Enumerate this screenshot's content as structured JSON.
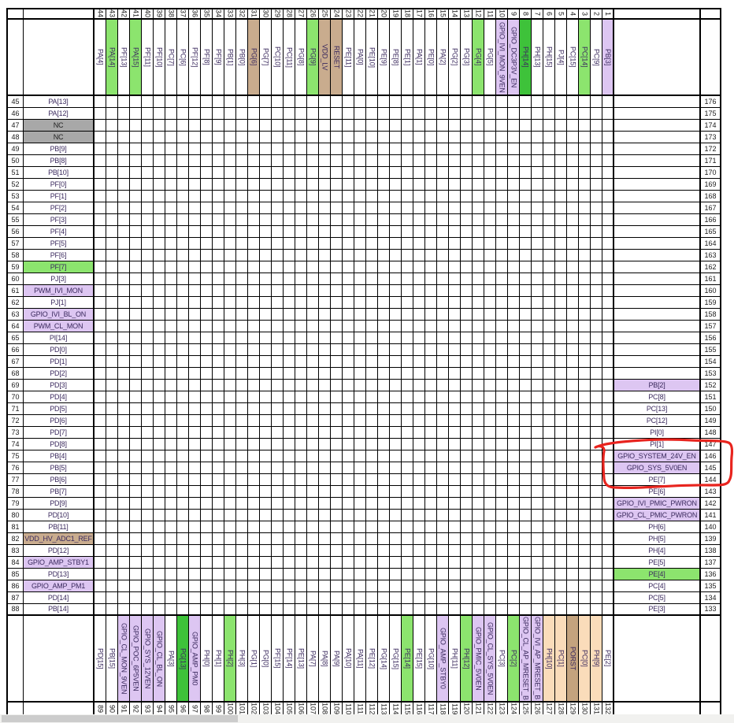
{
  "colors": {
    "light_green": "#8CE46E",
    "dark_green": "#3EC23A",
    "light_purple": "#DDC6F2",
    "tan": "#C9AC8E",
    "dark_tan": "#C4A37E",
    "peach": "#FADCBA",
    "gray_nc": "#A8A8A8",
    "annotation_red": "#E8241E",
    "label_text": "#3B2A5E",
    "number_text": "#1A1A1A"
  },
  "color_legend": {
    "w": "white",
    "g": "light_green",
    "G": "dark_green",
    "p": "light_purple",
    "t": "tan",
    "T": "dark_tan",
    "o": "peach",
    "n": "gray_nc"
  },
  "pins": {
    "top": [
      {
        "n": "44",
        "l": "PA[4]",
        "c": "w"
      },
      {
        "n": "43",
        "l": "PA[14]",
        "c": "g"
      },
      {
        "n": "42",
        "l": "PF[13]",
        "c": "w"
      },
      {
        "n": "41",
        "l": "PA[15]",
        "c": "g"
      },
      {
        "n": "40",
        "l": "PF[11]",
        "c": "w"
      },
      {
        "n": "39",
        "l": "PF[10]",
        "c": "w"
      },
      {
        "n": "38",
        "l": "PC[7]",
        "c": "w"
      },
      {
        "n": "37",
        "l": "PC[6]",
        "c": "w"
      },
      {
        "n": "36",
        "l": "PF[12]",
        "c": "w"
      },
      {
        "n": "35",
        "l": "PF[8]",
        "c": "w"
      },
      {
        "n": "34",
        "l": "PF[9]",
        "c": "w"
      },
      {
        "n": "33",
        "l": "PB[1]",
        "c": "w"
      },
      {
        "n": "32",
        "l": "PB[0]",
        "c": "w"
      },
      {
        "n": "31",
        "l": "PG[6]",
        "c": "t"
      },
      {
        "n": "30",
        "l": "PG[7]",
        "c": "w"
      },
      {
        "n": "29",
        "l": "PC[10]",
        "c": "w"
      },
      {
        "n": "28",
        "l": "PC[11]",
        "c": "w"
      },
      {
        "n": "27",
        "l": "PG[8]",
        "c": "w"
      },
      {
        "n": "26",
        "l": "PG[9]",
        "c": "g"
      },
      {
        "n": "25",
        "l": "VDD_LV",
        "c": "t"
      },
      {
        "n": "24",
        "l": "RESET",
        "c": "t"
      },
      {
        "n": "23",
        "l": "PE[11]",
        "c": "w"
      },
      {
        "n": "22",
        "l": "PA[0]",
        "c": "w"
      },
      {
        "n": "21",
        "l": "PE[10]",
        "c": "w"
      },
      {
        "n": "20",
        "l": "PE[9]",
        "c": "w"
      },
      {
        "n": "19",
        "l": "PE[8]",
        "c": "w"
      },
      {
        "n": "18",
        "l": "PE[1]",
        "c": "w"
      },
      {
        "n": "17",
        "l": "PA[1]",
        "c": "w"
      },
      {
        "n": "16",
        "l": "PE[0]",
        "c": "w"
      },
      {
        "n": "15",
        "l": "PA[2]",
        "c": "w"
      },
      {
        "n": "14",
        "l": "PG[2]",
        "c": "w"
      },
      {
        "n": "13",
        "l": "PG[3]",
        "c": "w"
      },
      {
        "n": "12",
        "l": "PG[4]",
        "c": "g"
      },
      {
        "n": "11",
        "l": "PG[5]",
        "c": "w"
      },
      {
        "n": "10",
        "l": "GPIO_IVI_MON_9VEN",
        "c": "p"
      },
      {
        "n": "9",
        "l": "GPIO_DC3P3V_EN",
        "c": "p"
      },
      {
        "n": "8",
        "l": "PH[14]",
        "c": "G"
      },
      {
        "n": "7",
        "l": "PH[13]",
        "c": "w"
      },
      {
        "n": "6",
        "l": "PH[15]",
        "c": "w"
      },
      {
        "n": "5",
        "l": "PJ[4]",
        "c": "w"
      },
      {
        "n": "4",
        "l": "PC[15]",
        "c": "w"
      },
      {
        "n": "3",
        "l": "PC[14]",
        "c": "g"
      },
      {
        "n": "2",
        "l": "PC[9]",
        "c": "w"
      },
      {
        "n": "1",
        "l": "PB[3]",
        "c": "p"
      }
    ],
    "left": [
      {
        "n": "45",
        "l": "PA[13]",
        "c": "w"
      },
      {
        "n": "46",
        "l": "PA[12]",
        "c": "w"
      },
      {
        "n": "47",
        "l": "NC",
        "c": "n"
      },
      {
        "n": "48",
        "l": "NC",
        "c": "n"
      },
      {
        "n": "49",
        "l": "PB[9]",
        "c": "w"
      },
      {
        "n": "50",
        "l": "PB[8]",
        "c": "w"
      },
      {
        "n": "51",
        "l": "PB[10]",
        "c": "w"
      },
      {
        "n": "52",
        "l": "PF[0]",
        "c": "w"
      },
      {
        "n": "53",
        "l": "PF[1]",
        "c": "w"
      },
      {
        "n": "54",
        "l": "PF[2]",
        "c": "w"
      },
      {
        "n": "55",
        "l": "PF[3]",
        "c": "w"
      },
      {
        "n": "56",
        "l": "PF[4]",
        "c": "w"
      },
      {
        "n": "57",
        "l": "PF[5]",
        "c": "w"
      },
      {
        "n": "58",
        "l": "PF[6]",
        "c": "w"
      },
      {
        "n": "59",
        "l": "PF[7]",
        "c": "g"
      },
      {
        "n": "60",
        "l": "PJ[3]",
        "c": "w"
      },
      {
        "n": "61",
        "l": "PWM_IVI_MON",
        "c": "p"
      },
      {
        "n": "62",
        "l": "PJ[1]",
        "c": "w"
      },
      {
        "n": "63",
        "l": "GPIO_IVI_BL_ON",
        "c": "p"
      },
      {
        "n": "64",
        "l": "PWM_CL_MON",
        "c": "p"
      },
      {
        "n": "65",
        "l": "PI[14]",
        "c": "w"
      },
      {
        "n": "66",
        "l": "PD[0]",
        "c": "w"
      },
      {
        "n": "67",
        "l": "PD[1]",
        "c": "w"
      },
      {
        "n": "68",
        "l": "PD[2]",
        "c": "w"
      },
      {
        "n": "69",
        "l": "PD[3]",
        "c": "w"
      },
      {
        "n": "70",
        "l": "PD[4]",
        "c": "w"
      },
      {
        "n": "71",
        "l": "PD[5]",
        "c": "w"
      },
      {
        "n": "72",
        "l": "PD[6]",
        "c": "w"
      },
      {
        "n": "73",
        "l": "PD[7]",
        "c": "w"
      },
      {
        "n": "74",
        "l": "PD[8]",
        "c": "w"
      },
      {
        "n": "75",
        "l": "PB[4]",
        "c": "w"
      },
      {
        "n": "76",
        "l": "PB[5]",
        "c": "w"
      },
      {
        "n": "77",
        "l": "PB[6]",
        "c": "w"
      },
      {
        "n": "78",
        "l": "PB[7]",
        "c": "w"
      },
      {
        "n": "79",
        "l": "PD[9]",
        "c": "w"
      },
      {
        "n": "80",
        "l": "PD[10]",
        "c": "w"
      },
      {
        "n": "81",
        "l": "PB[11]",
        "c": "w"
      },
      {
        "n": "82",
        "l": "VDD_HV_ADC1_REF",
        "c": "t"
      },
      {
        "n": "83",
        "l": "PD[12]",
        "c": "w"
      },
      {
        "n": "84",
        "l": "GPIO_AMP_STBY1",
        "c": "p"
      },
      {
        "n": "85",
        "l": "PD[13]",
        "c": "w"
      },
      {
        "n": "86",
        "l": "GPIO_AMP_PM1",
        "c": "p"
      },
      {
        "n": "87",
        "l": "PD[14]",
        "c": "w"
      },
      {
        "n": "88",
        "l": "PB[14]",
        "c": "w"
      }
    ],
    "right": [
      {
        "n": "176",
        "l": "",
        "c": "w"
      },
      {
        "n": "175",
        "l": "",
        "c": "w"
      },
      {
        "n": "174",
        "l": "",
        "c": "w"
      },
      {
        "n": "173",
        "l": "",
        "c": "w"
      },
      {
        "n": "172",
        "l": "",
        "c": "w"
      },
      {
        "n": "171",
        "l": "",
        "c": "w"
      },
      {
        "n": "170",
        "l": "",
        "c": "w"
      },
      {
        "n": "169",
        "l": "",
        "c": "w"
      },
      {
        "n": "168",
        "l": "",
        "c": "w"
      },
      {
        "n": "167",
        "l": "",
        "c": "w"
      },
      {
        "n": "166",
        "l": "",
        "c": "w"
      },
      {
        "n": "165",
        "l": "",
        "c": "w"
      },
      {
        "n": "164",
        "l": "",
        "c": "w"
      },
      {
        "n": "163",
        "l": "",
        "c": "w"
      },
      {
        "n": "162",
        "l": "",
        "c": "w"
      },
      {
        "n": "161",
        "l": "",
        "c": "w"
      },
      {
        "n": "160",
        "l": "",
        "c": "w"
      },
      {
        "n": "159",
        "l": "",
        "c": "w"
      },
      {
        "n": "158",
        "l": "",
        "c": "w"
      },
      {
        "n": "157",
        "l": "",
        "c": "w"
      },
      {
        "n": "156",
        "l": "",
        "c": "w"
      },
      {
        "n": "155",
        "l": "",
        "c": "w"
      },
      {
        "n": "154",
        "l": "",
        "c": "w"
      },
      {
        "n": "153",
        "l": "",
        "c": "w"
      },
      {
        "n": "152",
        "l": "PB[2]",
        "c": "p"
      },
      {
        "n": "151",
        "l": "PC[8]",
        "c": "w"
      },
      {
        "n": "150",
        "l": "PC[13]",
        "c": "w"
      },
      {
        "n": "149",
        "l": "PC[12]",
        "c": "w"
      },
      {
        "n": "148",
        "l": "PI[0]",
        "c": "w"
      },
      {
        "n": "147",
        "l": "PI[1]",
        "c": "w"
      },
      {
        "n": "146",
        "l": "GPIO_SYSTEM_24V_EN",
        "c": "p"
      },
      {
        "n": "145",
        "l": "GPIO_SYS_5V0EN",
        "c": "p"
      },
      {
        "n": "144",
        "l": "PE[7]",
        "c": "w"
      },
      {
        "n": "143",
        "l": "PE[6]",
        "c": "w"
      },
      {
        "n": "142",
        "l": "GPIO_IVI_PMIC_PWRON",
        "c": "p"
      },
      {
        "n": "141",
        "l": "GPIO_CL_PMIC_PWRON",
        "c": "p"
      },
      {
        "n": "140",
        "l": "PH[6]",
        "c": "w"
      },
      {
        "n": "139",
        "l": "PH[5]",
        "c": "w"
      },
      {
        "n": "138",
        "l": "PH[4]",
        "c": "w"
      },
      {
        "n": "137",
        "l": "PE[5]",
        "c": "w"
      },
      {
        "n": "136",
        "l": "PE[4]",
        "c": "g"
      },
      {
        "n": "135",
        "l": "PC[4]",
        "c": "w"
      },
      {
        "n": "134",
        "l": "PC[5]",
        "c": "w"
      },
      {
        "n": "133",
        "l": "PE[3]",
        "c": "w"
      }
    ],
    "bottom": [
      {
        "n": "89",
        "l": "PD[15]",
        "c": "w"
      },
      {
        "n": "90",
        "l": "PB[15]",
        "c": "w"
      },
      {
        "n": "91",
        "l": "GPIO_CL_MON_9VEN",
        "c": "p"
      },
      {
        "n": "92",
        "l": "GPIO_POC_6P5VEN",
        "c": "p"
      },
      {
        "n": "93",
        "l": "GPIO_SYS_12VEN",
        "c": "p"
      },
      {
        "n": "94",
        "l": "GPIO_CL_BL_ON",
        "c": "p"
      },
      {
        "n": "95",
        "l": "PA[3]",
        "c": "w"
      },
      {
        "n": "96",
        "l": "PG[13]",
        "c": "G"
      },
      {
        "n": "97",
        "l": "GPIO_AMP_PM0",
        "c": "p"
      },
      {
        "n": "98",
        "l": "PH[0]",
        "c": "w"
      },
      {
        "n": "99",
        "l": "PH[1]",
        "c": "w"
      },
      {
        "n": "100",
        "l": "PH[2]",
        "c": "g"
      },
      {
        "n": "101",
        "l": "PH[3]",
        "c": "w"
      },
      {
        "n": "102",
        "l": "PG[1]",
        "c": "w"
      },
      {
        "n": "103",
        "l": "PG[0]",
        "c": "w"
      },
      {
        "n": "104",
        "l": "PF[15]",
        "c": "w"
      },
      {
        "n": "105",
        "l": "PF[14]",
        "c": "w"
      },
      {
        "n": "106",
        "l": "PE[13]",
        "c": "w"
      },
      {
        "n": "107",
        "l": "PA[7]",
        "c": "w"
      },
      {
        "n": "108",
        "l": "PA[8]",
        "c": "w"
      },
      {
        "n": "109",
        "l": "PA[9]",
        "c": "w"
      },
      {
        "n": "110",
        "l": "PA[10]",
        "c": "w"
      },
      {
        "n": "111",
        "l": "PA[11]",
        "c": "w"
      },
      {
        "n": "112",
        "l": "PE[12]",
        "c": "w"
      },
      {
        "n": "113",
        "l": "PG[14]",
        "c": "w"
      },
      {
        "n": "114",
        "l": "PG[15]",
        "c": "w"
      },
      {
        "n": "115",
        "l": "PE[14]",
        "c": "g"
      },
      {
        "n": "116",
        "l": "PE[15]",
        "c": "w"
      },
      {
        "n": "117",
        "l": "PG[10]",
        "c": "w"
      },
      {
        "n": "118",
        "l": "GPIO_AMP_STBY0",
        "c": "p"
      },
      {
        "n": "119",
        "l": "PH[11]",
        "c": "w"
      },
      {
        "n": "120",
        "l": "PH[12]",
        "c": "g"
      },
      {
        "n": "121",
        "l": "GPIO_PMIC_5V0EN",
        "c": "p"
      },
      {
        "n": "122",
        "l": "GPIO_CL_SYS_5V0EN",
        "c": "p"
      },
      {
        "n": "123",
        "l": "PC[3]",
        "c": "w"
      },
      {
        "n": "124",
        "l": "PC[2]",
        "c": "g"
      },
      {
        "n": "125",
        "l": "GPIO_CL_AP_MRESET_B",
        "c": "p"
      },
      {
        "n": "126",
        "l": "GPIO_IVI_AP_MRESET_B",
        "c": "p"
      },
      {
        "n": "127",
        "l": "PH[10]",
        "c": "o"
      },
      {
        "n": "128",
        "l": "PC[1]",
        "c": "o"
      },
      {
        "n": "129",
        "l": "PORST",
        "c": "T"
      },
      {
        "n": "130",
        "l": "PC[0]",
        "c": "o"
      },
      {
        "n": "131",
        "l": "PH[9]",
        "c": "o"
      },
      {
        "n": "132",
        "l": "PE[2]",
        "c": "w"
      }
    ]
  },
  "annotation": {
    "type": "hand_drawn_red_rectangle",
    "highlighted_pins": [
      {
        "n": "147",
        "l": "PI[1]"
      },
      {
        "n": "146",
        "l": "GPIO_SYSTEM_24V_EN"
      },
      {
        "n": "145",
        "l": "GPIO_SYS_5V0EN"
      },
      {
        "n": "144",
        "l": "PE[7]"
      }
    ]
  }
}
